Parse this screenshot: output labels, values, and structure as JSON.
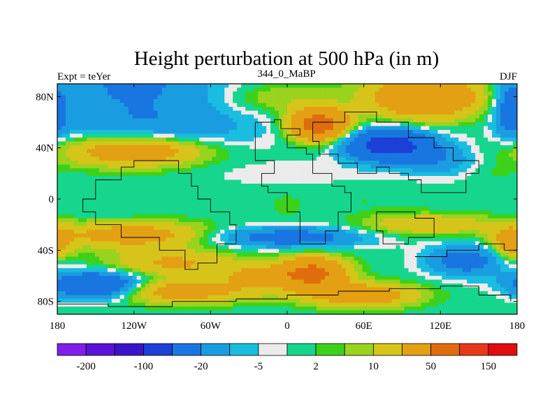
{
  "chart_data": {
    "type": "heatmap",
    "title": "Height perturbation at 500 hPa (in m)",
    "left_label": "Expt = teYer",
    "center_label": "344_0_MaBP",
    "right_label": "DJF",
    "x_ticks": [
      "180",
      "120W",
      "60W",
      "0",
      "60E",
      "120E",
      "180"
    ],
    "x_tick_values": [
      -180,
      -120,
      -60,
      0,
      60,
      120,
      180
    ],
    "y_ticks": [
      "80N",
      "40N",
      "0",
      "40S",
      "80S"
    ],
    "y_tick_values": [
      80,
      40,
      0,
      -40,
      -80
    ],
    "xlim": [
      -180,
      180
    ],
    "ylim": [
      -90,
      90
    ],
    "colorbar": {
      "levels": [
        -200,
        -150,
        -100,
        -50,
        -20,
        -10,
        -5,
        -2,
        2,
        5,
        10,
        20,
        50,
        100,
        150,
        200
      ],
      "labels": [
        "-200",
        "-100",
        "-20",
        "-5",
        "2",
        "10",
        "50",
        "150"
      ],
      "colors": [
        "#7f1fe8",
        "#5a12d6",
        "#3b14c8",
        "#1c3fd6",
        "#1976e0",
        "#1a9de0",
        "#18bde0",
        "#ebebeb",
        "#15d68c",
        "#3ed11a",
        "#99d31d",
        "#d6c41a",
        "#e3a012",
        "#e06d0d",
        "#e8381a",
        "#e00d0d"
      ]
    },
    "blobs": [
      {
        "lon": -120,
        "lat": 90,
        "dx": 70,
        "dy": 28,
        "v": -22
      },
      {
        "lon": -100,
        "lat": 55,
        "dx": 90,
        "dy": 18,
        "v": -15
      },
      {
        "lon": -120,
        "lat": 38,
        "dx": 55,
        "dy": 12,
        "v": 38
      },
      {
        "lon": -135,
        "lat": -10,
        "dx": 40,
        "dy": 12,
        "v": -2
      },
      {
        "lon": -120,
        "lat": -28,
        "dx": 60,
        "dy": 10,
        "v": 30
      },
      {
        "lon": -90,
        "lat": -50,
        "dx": 50,
        "dy": 10,
        "v": 22
      },
      {
        "lon": -150,
        "lat": -68,
        "dx": 35,
        "dy": 10,
        "v": -60
      },
      {
        "lon": -90,
        "lat": -72,
        "dx": 70,
        "dy": 9,
        "v": 30
      },
      {
        "lon": -20,
        "lat": 0,
        "dx": 12,
        "dy": 10,
        "v": 1
      },
      {
        "lon": 0,
        "lat": 20,
        "dx": 70,
        "dy": 10,
        "v": -4
      },
      {
        "lon": 25,
        "lat": 58,
        "dx": 22,
        "dy": 12,
        "v": 70
      },
      {
        "lon": -10,
        "lat": 78,
        "dx": 40,
        "dy": 12,
        "v": 10
      },
      {
        "lon": 20,
        "lat": 85,
        "dx": 60,
        "dy": 8,
        "v": 1
      },
      {
        "lon": 80,
        "lat": 42,
        "dx": 32,
        "dy": 12,
        "v": -70
      },
      {
        "lon": 120,
        "lat": 30,
        "dx": 30,
        "dy": 12,
        "v": -15
      },
      {
        "lon": 110,
        "lat": 80,
        "dx": 45,
        "dy": 18,
        "v": 45
      },
      {
        "lon": 150,
        "lat": 65,
        "dx": 10,
        "dy": 28,
        "v": 1
      },
      {
        "lon": 175,
        "lat": 70,
        "dx": 12,
        "dy": 20,
        "v": -30
      },
      {
        "lon": 160,
        "lat": 22,
        "dx": 20,
        "dy": 8,
        "v": 3
      },
      {
        "lon": 0,
        "lat": -5,
        "dx": 10,
        "dy": 8,
        "v": 4
      },
      {
        "lon": 60,
        "lat": -2,
        "dx": 40,
        "dy": 8,
        "v": 2
      },
      {
        "lon": 0,
        "lat": -30,
        "dx": 60,
        "dy": 8,
        "v": -30
      },
      {
        "lon": 110,
        "lat": -20,
        "dx": 50,
        "dy": 8,
        "v": 20
      },
      {
        "lon": -30,
        "lat": -48,
        "dx": 50,
        "dy": 6,
        "v": 1
      },
      {
        "lon": -20,
        "lat": -60,
        "dx": 30,
        "dy": 8,
        "v": 25
      },
      {
        "lon": 20,
        "lat": -58,
        "dx": 25,
        "dy": 12,
        "v": 60
      },
      {
        "lon": 60,
        "lat": -75,
        "dx": 40,
        "dy": 9,
        "v": 35
      },
      {
        "lon": 30,
        "lat": -82,
        "dx": 10,
        "dy": 7,
        "v": 1
      },
      {
        "lon": 140,
        "lat": -48,
        "dx": 30,
        "dy": 12,
        "v": -30
      },
      {
        "lon": 175,
        "lat": -35,
        "dx": 15,
        "dy": 12,
        "v": 30
      },
      {
        "lon": 165,
        "lat": -75,
        "dx": 15,
        "dy": 10,
        "v": 1
      }
    ]
  }
}
